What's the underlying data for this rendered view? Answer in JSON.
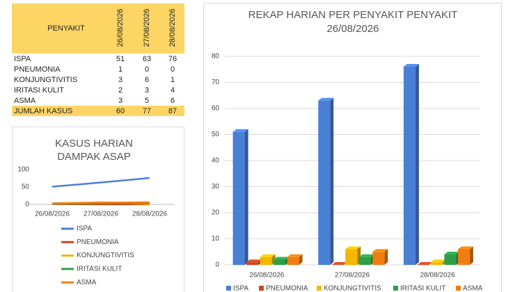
{
  "table": {
    "header": [
      "PENYAKIT",
      "26/08/2026",
      "27/08/2026",
      "28/08/2026"
    ],
    "rows": [
      [
        "ISPA",
        51,
        63,
        76
      ],
      [
        "PNEUMONIA",
        1,
        0,
        0
      ],
      [
        "KONJUNGTIVITIS",
        3,
        6,
        1
      ],
      [
        "IRITASI KULIT",
        2,
        3,
        4
      ],
      [
        "ASMA",
        3,
        5,
        6
      ],
      [
        "JUMLAH KASUS",
        60,
        77,
        87
      ]
    ]
  },
  "chart_data": [
    {
      "type": "line",
      "title": "KASUS HARIAN",
      "subtitle": "DAMPAK ASAP",
      "categories": [
        "26/08/2026",
        "27/08/2026",
        "28/08/2026"
      ],
      "series": [
        {
          "name": "ISPA",
          "color": "#4a7fd6",
          "values": [
            51,
            63,
            76
          ]
        },
        {
          "name": "PNEUMONIA",
          "color": "#d0441f",
          "values": [
            1,
            0,
            0
          ]
        },
        {
          "name": "KONJUNGTIVITIS",
          "color": "#f2b800",
          "values": [
            3,
            6,
            1
          ]
        },
        {
          "name": "IRITASI KULIT",
          "color": "#2e9e48",
          "values": [
            2,
            3,
            4
          ]
        },
        {
          "name": "ASMA",
          "color": "#f07d12",
          "values": [
            3,
            5,
            6
          ]
        }
      ],
      "ylim": [
        0,
        100
      ],
      "yticks": [
        0,
        50,
        100
      ],
      "grid": false
    },
    {
      "type": "bar",
      "title": "REKAP HARIAN PER PENYAKIT PENYAKIT",
      "subtitle": "26/08/2026",
      "categories": [
        "26/08/2026",
        "27/08/2026",
        "28/08/2026"
      ],
      "series": [
        {
          "name": "ISPA",
          "color": "#4a7fd6",
          "values": [
            51,
            63,
            76
          ]
        },
        {
          "name": "PNEUMONIA",
          "color": "#d0441f",
          "values": [
            1,
            0,
            0
          ]
        },
        {
          "name": "KONJUNGTIVITIS",
          "color": "#f2b800",
          "values": [
            3,
            6,
            1
          ]
        },
        {
          "name": "IRITASI KULIT",
          "color": "#2e9e48",
          "values": [
            2,
            3,
            4
          ]
        },
        {
          "name": "ASMA",
          "color": "#f07d12",
          "values": [
            3,
            5,
            6
          ]
        }
      ],
      "ylim": [
        0,
        80
      ],
      "yticks": [
        0,
        10,
        20,
        30,
        40,
        50,
        60,
        70,
        80
      ],
      "grid": true
    }
  ]
}
